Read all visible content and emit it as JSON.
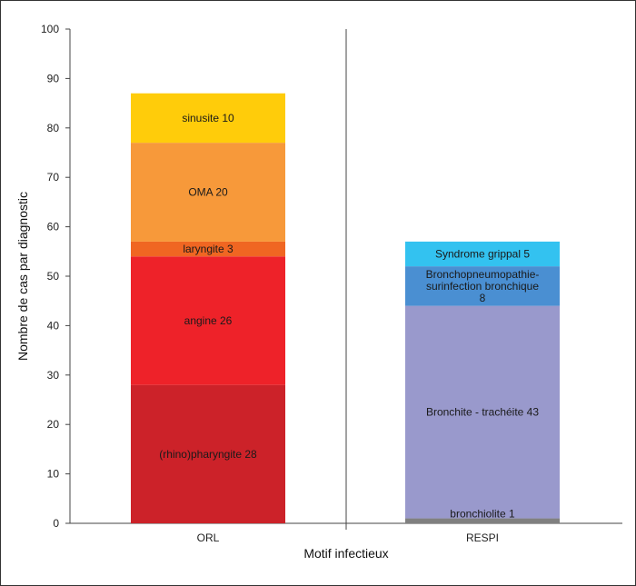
{
  "chart_data": {
    "type": "bar",
    "stacked": true,
    "xlabel": "Motif infectieux",
    "ylabel": "Nombre de cas par diagnostic",
    "ylim": [
      0,
      100
    ],
    "yticks": [
      0,
      10,
      20,
      30,
      40,
      50,
      60,
      70,
      80,
      90,
      100
    ],
    "categories": [
      "ORL",
      "RESPI"
    ],
    "grid": false,
    "stacks": [
      {
        "category": "ORL",
        "segments": [
          {
            "label_lines": [
              "(rhino)pharyngite 28"
            ],
            "value": 28,
            "color": "#CC2229"
          },
          {
            "label_lines": [
              "angine 26"
            ],
            "value": 26,
            "color": "#EE2229"
          },
          {
            "label_lines": [
              "laryngite 3"
            ],
            "value": 3,
            "color": "#F06622"
          },
          {
            "label_lines": [
              "OMA 20"
            ],
            "value": 20,
            "color": "#F7993A"
          },
          {
            "label_lines": [
              "sinusite 10"
            ],
            "value": 10,
            "color": "#FFCC0A"
          }
        ]
      },
      {
        "category": "RESPI",
        "segments": [
          {
            "label_lines": [
              "bronchiolite 1"
            ],
            "value": 1,
            "color": "#808080"
          },
          {
            "label_lines": [
              "Bronchite - trachéite 43"
            ],
            "value": 43,
            "color": "#9999CC"
          },
          {
            "label_lines": [
              "Bronchopneumopathie-",
              "surinfection bronchique",
              "8"
            ],
            "value": 8,
            "color": "#4A8FD2"
          },
          {
            "label_lines": [
              "Syndrome grippal 5"
            ],
            "value": 5,
            "color": "#33C2F0"
          }
        ]
      }
    ]
  }
}
